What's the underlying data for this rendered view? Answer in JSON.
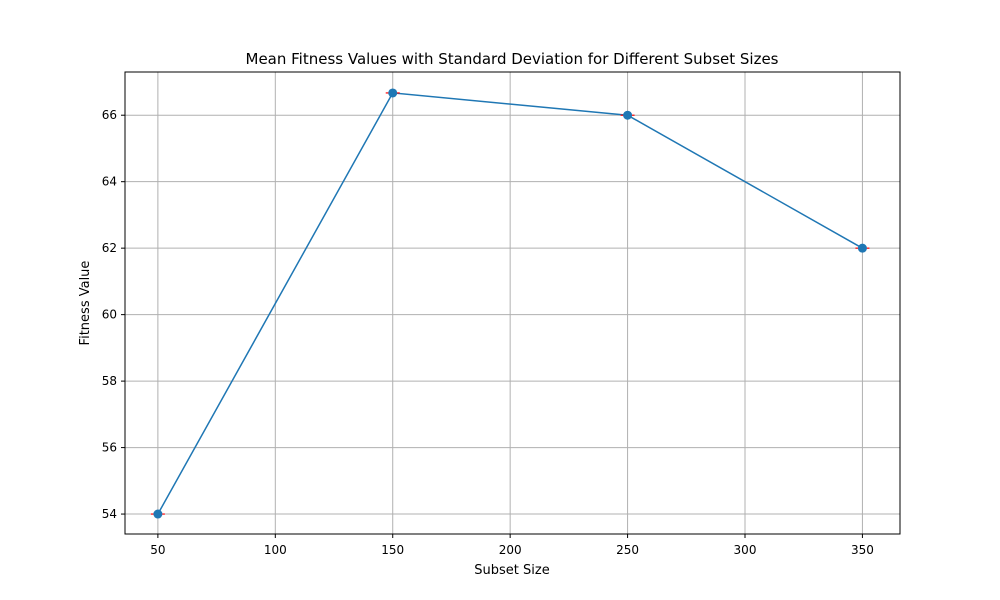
{
  "chart_data": {
    "type": "line",
    "title": "Mean Fitness Values with Standard Deviation for Different Subset Sizes",
    "xlabel": "Subset Size",
    "ylabel": "Fitness Value",
    "x": [
      50,
      150,
      250,
      350
    ],
    "series": [
      {
        "values": [
          54.0,
          66.67,
          66.0,
          62.0
        ],
        "std": [
          0,
          0,
          0,
          0
        ],
        "color": "#1f77b4",
        "marker": "circle"
      }
    ],
    "error_bar_color": "#ff0000",
    "xlim": [
      36,
      366
    ],
    "ylim": [
      53.4,
      67.3
    ],
    "xticks": [
      50,
      100,
      150,
      200,
      250,
      300,
      350
    ],
    "yticks": [
      54,
      56,
      58,
      60,
      62,
      64,
      66
    ],
    "grid": true
  }
}
